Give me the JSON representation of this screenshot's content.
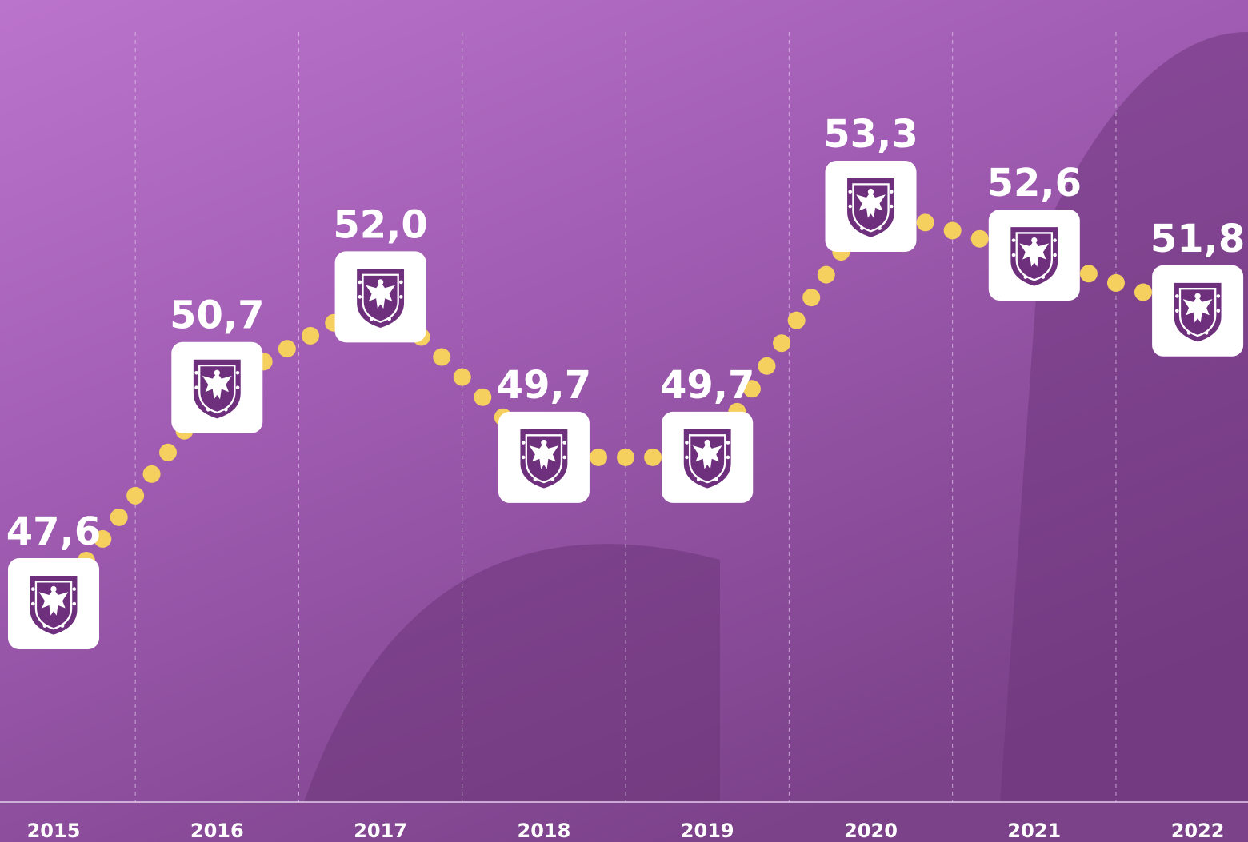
{
  "chart_data": {
    "type": "line",
    "categories": [
      "2015",
      "2016",
      "2017",
      "2018",
      "2019",
      "2020",
      "2021",
      "2022"
    ],
    "values": [
      47.6,
      50.7,
      52.0,
      49.7,
      49.7,
      53.3,
      52.6,
      51.8
    ],
    "value_labels": [
      "47,6",
      "50,7",
      "52,0",
      "49,7",
      "49,7",
      "53,3",
      "52,6",
      "51,8"
    ],
    "color": "#f5d05e"
  }
}
